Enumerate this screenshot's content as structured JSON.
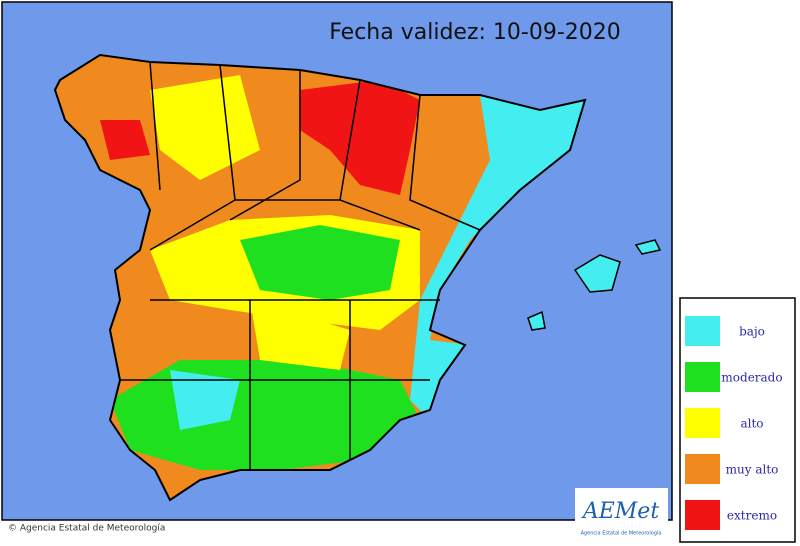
{
  "title": "Fecha validez: 10-09-2020",
  "legend": [
    {
      "label": "bajo",
      "color": "#44eef0"
    },
    {
      "label": "moderado",
      "color": "#1ee01e"
    },
    {
      "label": "alto",
      "color": "#ffff00"
    },
    {
      "label": "muy alto",
      "color": "#f08a1e"
    },
    {
      "label": "extremo",
      "color": "#f01414"
    }
  ],
  "credit": "© Agencia Estatal de Meteorología",
  "logo": {
    "name": "AEMet",
    "subtitle": "Agencia Estatal de Meteorología"
  }
}
